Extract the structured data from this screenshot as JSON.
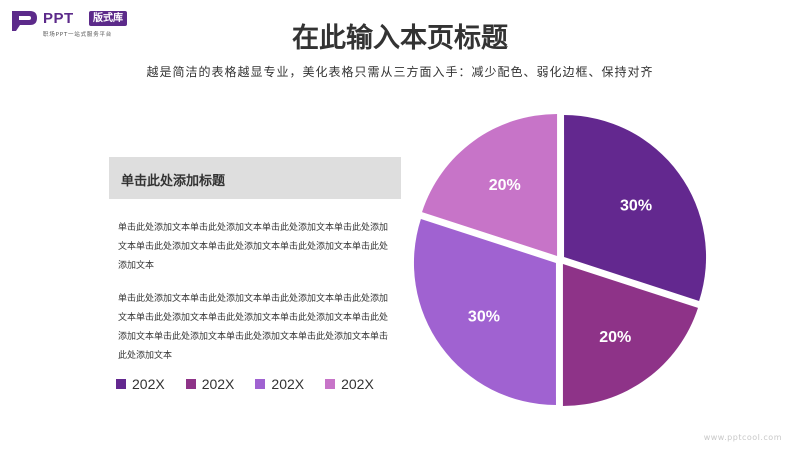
{
  "logo": {
    "word": "PPT",
    "badge": "版式库",
    "tagline": "职场PPT一站式服务平台"
  },
  "title": "在此输入本页标题",
  "subtitle": "越是简洁的表格越显专业，美化表格只需从三方面入手：减少配色、弱化边框、保持对齐",
  "content": {
    "box_title": "单击此处添加标题",
    "paragraph1": "单击此处添加文本单击此处添加文本单击此处添加文本单击此处添加文本单击此处添加文本单击此处添加文本单击此处添加文本单击此处添加文本",
    "paragraph2": "单击此处添加文本单击此处添加文本单击此处添加文本单击此处添加文本单击此处添加文本单击此处添加文本单击此处添加文本单击此处添加文本单击此处添加文本单击此处添加文本单击此处添加文本单击此处添加文本"
  },
  "colors": {
    "brand": "#5c2a8a",
    "box_bg": "#dedede"
  },
  "watermark": "www.pptcool.com",
  "chart_data": {
    "type": "pie",
    "title": "",
    "slices": [
      {
        "label": "202X",
        "value": 30,
        "display": "30%",
        "color": "#63288f"
      },
      {
        "label": "202X",
        "value": 20,
        "display": "20%",
        "color": "#8e3388"
      },
      {
        "label": "202X",
        "value": 30,
        "display": "30%",
        "color": "#a062d1"
      },
      {
        "label": "202X",
        "value": 20,
        "display": "20%",
        "color": "#c774c8"
      }
    ],
    "start_angle_deg": 0,
    "direction": "clockwise",
    "legend": "bottom-left"
  }
}
